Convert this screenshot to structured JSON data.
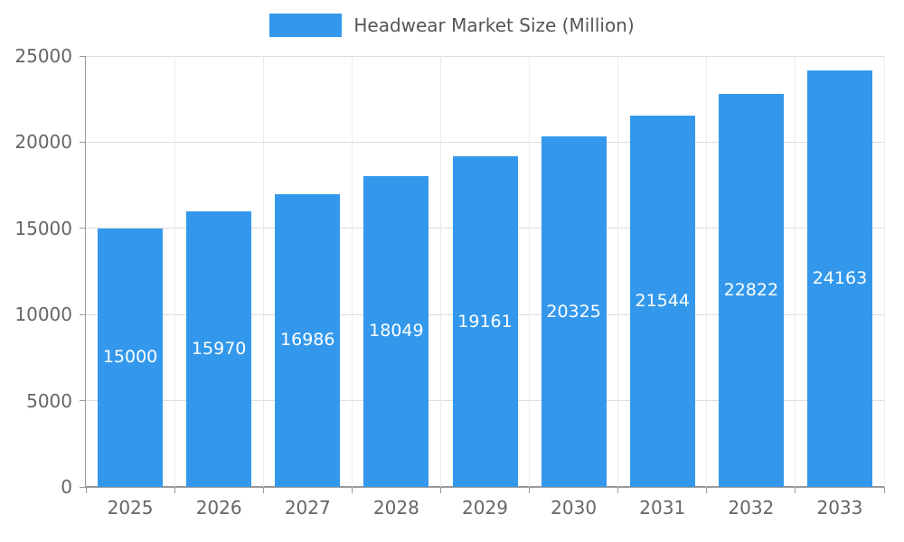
{
  "chart_data": {
    "type": "bar",
    "title": "Headwear Market Size (Million)",
    "categories": [
      "2025",
      "2026",
      "2027",
      "2028",
      "2029",
      "2030",
      "2031",
      "2032",
      "2033"
    ],
    "series": [
      {
        "name": "Headwear Market Size (Million)",
        "values": [
          15000,
          15970,
          16986,
          18049,
          19161,
          20325,
          21544,
          22822,
          24163
        ]
      }
    ],
    "value_labels": [
      "15000",
      "15970",
      "16986",
      "18049",
      "19161",
      "20325",
      "21544",
      "22822",
      "24163"
    ],
    "xlabel": "",
    "ylabel": "",
    "ylim": [
      0,
      25000
    ],
    "yticks": [
      0,
      5000,
      10000,
      15000,
      20000,
      25000
    ],
    "grid": true,
    "legend_position": "top",
    "colors": {
      "bar": "#3398EC",
      "value_label": "#FFFFFF",
      "axis_text": "#666666",
      "legend_text": "#555555",
      "gridline": "#DCDCDC",
      "axis_line": "#999999",
      "background": "#FFFFFF"
    }
  }
}
